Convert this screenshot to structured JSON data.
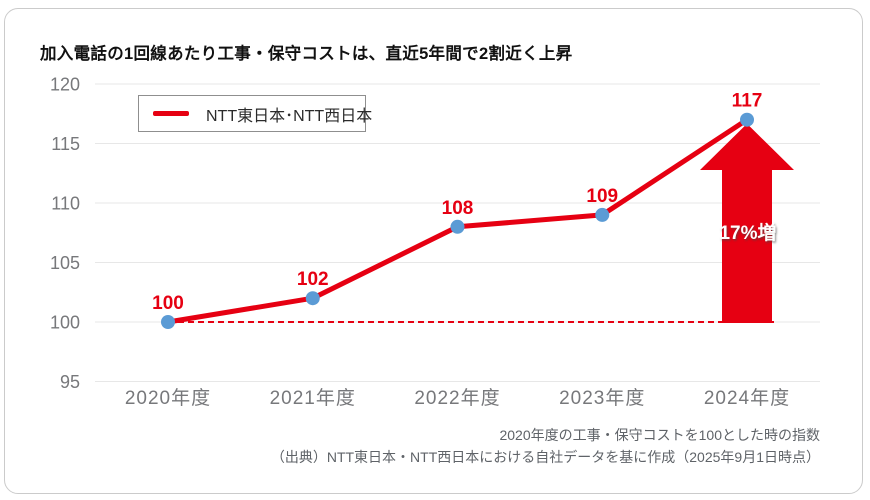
{
  "page": {
    "title": "加入電話の1回線あたり工事・保守コストは、直近5年間で2割近く上昇"
  },
  "legend": {
    "label": "NTT東日本･NTT西日本"
  },
  "footer": {
    "line1": "2020年度の工事・保守コストを100とした時の指数",
    "line2": "（出典）NTT東日本・NTT西日本における自社データを基に作成（2025年9月1日時点）"
  },
  "chart_data": {
    "type": "line",
    "title": "加入電話の1回線あたり工事・保守コストは、直近5年間で2割近く上昇",
    "categories": [
      "2020年度",
      "2021年度",
      "2022年度",
      "2023年度",
      "2024年度"
    ],
    "series": [
      {
        "name": "NTT東日本･NTT西日本",
        "values": [
          100,
          102,
          108,
          109,
          117
        ]
      }
    ],
    "ylim": [
      95,
      120
    ],
    "yticks": [
      95,
      100,
      105,
      110,
      115,
      120
    ],
    "grid": true,
    "legend_position": "top-left",
    "baseline": {
      "value": 100,
      "style": "dashed"
    },
    "annotation": {
      "label": "17%増",
      "category_index": 4,
      "from_value": 100,
      "to_value": 117,
      "shape": "up-arrow"
    }
  },
  "colors": {
    "series_red": "#e60012",
    "marker_blue": "#5b9bd5",
    "gridline": "#e7e7e7",
    "axis_text": "#77787b",
    "title_text": "#111111",
    "footer_text": "#5f6368",
    "legend_border": "#8f8f8f",
    "card_border": "#cbcbcb",
    "annotation_text": "#ffffff"
  }
}
